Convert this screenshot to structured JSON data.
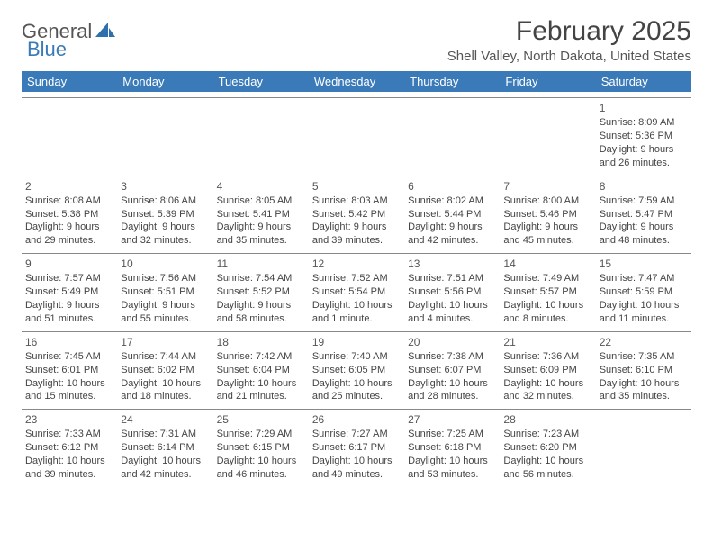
{
  "logo": {
    "general": "General",
    "blue": "Blue"
  },
  "title": "February 2025",
  "location": "Shell Valley, North Dakota, United States",
  "colors": {
    "header_bg": "#3a7ab8",
    "header_text": "#ffffff",
    "divider": "#888888",
    "body_text": "#444444"
  },
  "weekdays": [
    "Sunday",
    "Monday",
    "Tuesday",
    "Wednesday",
    "Thursday",
    "Friday",
    "Saturday"
  ],
  "weeks": [
    [
      {
        "day": ""
      },
      {
        "day": ""
      },
      {
        "day": ""
      },
      {
        "day": ""
      },
      {
        "day": ""
      },
      {
        "day": ""
      },
      {
        "day": "1",
        "sunrise": "Sunrise: 8:09 AM",
        "sunset": "Sunset: 5:36 PM",
        "daylight": "Daylight: 9 hours and 26 minutes."
      }
    ],
    [
      {
        "day": "2",
        "sunrise": "Sunrise: 8:08 AM",
        "sunset": "Sunset: 5:38 PM",
        "daylight": "Daylight: 9 hours and 29 minutes."
      },
      {
        "day": "3",
        "sunrise": "Sunrise: 8:06 AM",
        "sunset": "Sunset: 5:39 PM",
        "daylight": "Daylight: 9 hours and 32 minutes."
      },
      {
        "day": "4",
        "sunrise": "Sunrise: 8:05 AM",
        "sunset": "Sunset: 5:41 PM",
        "daylight": "Daylight: 9 hours and 35 minutes."
      },
      {
        "day": "5",
        "sunrise": "Sunrise: 8:03 AM",
        "sunset": "Sunset: 5:42 PM",
        "daylight": "Daylight: 9 hours and 39 minutes."
      },
      {
        "day": "6",
        "sunrise": "Sunrise: 8:02 AM",
        "sunset": "Sunset: 5:44 PM",
        "daylight": "Daylight: 9 hours and 42 minutes."
      },
      {
        "day": "7",
        "sunrise": "Sunrise: 8:00 AM",
        "sunset": "Sunset: 5:46 PM",
        "daylight": "Daylight: 9 hours and 45 minutes."
      },
      {
        "day": "8",
        "sunrise": "Sunrise: 7:59 AM",
        "sunset": "Sunset: 5:47 PM",
        "daylight": "Daylight: 9 hours and 48 minutes."
      }
    ],
    [
      {
        "day": "9",
        "sunrise": "Sunrise: 7:57 AM",
        "sunset": "Sunset: 5:49 PM",
        "daylight": "Daylight: 9 hours and 51 minutes."
      },
      {
        "day": "10",
        "sunrise": "Sunrise: 7:56 AM",
        "sunset": "Sunset: 5:51 PM",
        "daylight": "Daylight: 9 hours and 55 minutes."
      },
      {
        "day": "11",
        "sunrise": "Sunrise: 7:54 AM",
        "sunset": "Sunset: 5:52 PM",
        "daylight": "Daylight: 9 hours and 58 minutes."
      },
      {
        "day": "12",
        "sunrise": "Sunrise: 7:52 AM",
        "sunset": "Sunset: 5:54 PM",
        "daylight": "Daylight: 10 hours and 1 minute."
      },
      {
        "day": "13",
        "sunrise": "Sunrise: 7:51 AM",
        "sunset": "Sunset: 5:56 PM",
        "daylight": "Daylight: 10 hours and 4 minutes."
      },
      {
        "day": "14",
        "sunrise": "Sunrise: 7:49 AM",
        "sunset": "Sunset: 5:57 PM",
        "daylight": "Daylight: 10 hours and 8 minutes."
      },
      {
        "day": "15",
        "sunrise": "Sunrise: 7:47 AM",
        "sunset": "Sunset: 5:59 PM",
        "daylight": "Daylight: 10 hours and 11 minutes."
      }
    ],
    [
      {
        "day": "16",
        "sunrise": "Sunrise: 7:45 AM",
        "sunset": "Sunset: 6:01 PM",
        "daylight": "Daylight: 10 hours and 15 minutes."
      },
      {
        "day": "17",
        "sunrise": "Sunrise: 7:44 AM",
        "sunset": "Sunset: 6:02 PM",
        "daylight": "Daylight: 10 hours and 18 minutes."
      },
      {
        "day": "18",
        "sunrise": "Sunrise: 7:42 AM",
        "sunset": "Sunset: 6:04 PM",
        "daylight": "Daylight: 10 hours and 21 minutes."
      },
      {
        "day": "19",
        "sunrise": "Sunrise: 7:40 AM",
        "sunset": "Sunset: 6:05 PM",
        "daylight": "Daylight: 10 hours and 25 minutes."
      },
      {
        "day": "20",
        "sunrise": "Sunrise: 7:38 AM",
        "sunset": "Sunset: 6:07 PM",
        "daylight": "Daylight: 10 hours and 28 minutes."
      },
      {
        "day": "21",
        "sunrise": "Sunrise: 7:36 AM",
        "sunset": "Sunset: 6:09 PM",
        "daylight": "Daylight: 10 hours and 32 minutes."
      },
      {
        "day": "22",
        "sunrise": "Sunrise: 7:35 AM",
        "sunset": "Sunset: 6:10 PM",
        "daylight": "Daylight: 10 hours and 35 minutes."
      }
    ],
    [
      {
        "day": "23",
        "sunrise": "Sunrise: 7:33 AM",
        "sunset": "Sunset: 6:12 PM",
        "daylight": "Daylight: 10 hours and 39 minutes."
      },
      {
        "day": "24",
        "sunrise": "Sunrise: 7:31 AM",
        "sunset": "Sunset: 6:14 PM",
        "daylight": "Daylight: 10 hours and 42 minutes."
      },
      {
        "day": "25",
        "sunrise": "Sunrise: 7:29 AM",
        "sunset": "Sunset: 6:15 PM",
        "daylight": "Daylight: 10 hours and 46 minutes."
      },
      {
        "day": "26",
        "sunrise": "Sunrise: 7:27 AM",
        "sunset": "Sunset: 6:17 PM",
        "daylight": "Daylight: 10 hours and 49 minutes."
      },
      {
        "day": "27",
        "sunrise": "Sunrise: 7:25 AM",
        "sunset": "Sunset: 6:18 PM",
        "daylight": "Daylight: 10 hours and 53 minutes."
      },
      {
        "day": "28",
        "sunrise": "Sunrise: 7:23 AM",
        "sunset": "Sunset: 6:20 PM",
        "daylight": "Daylight: 10 hours and 56 minutes."
      },
      {
        "day": ""
      }
    ]
  ]
}
